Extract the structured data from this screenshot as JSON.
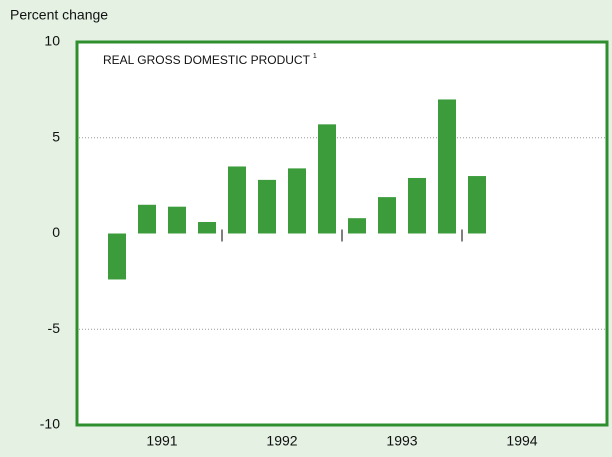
{
  "chart_data": {
    "type": "bar",
    "title": "REAL GROSS DOMESTIC PRODUCT",
    "title_footnote": "1",
    "y_label": "Percent change",
    "categories": [
      "1991",
      "1992",
      "1993",
      "1994"
    ],
    "values": [
      [
        -2.4,
        1.5,
        1.4,
        0.6
      ],
      [
        3.5,
        2.8,
        3.4,
        5.7
      ],
      [
        0.8,
        1.9,
        2.9,
        7.0
      ],
      [
        3.0,
        null,
        null,
        null
      ]
    ],
    "color": "#3c9c3c",
    "ylim": [
      -10,
      10
    ],
    "yticks": [
      -10,
      -5,
      0,
      5,
      10
    ],
    "grid": true
  }
}
